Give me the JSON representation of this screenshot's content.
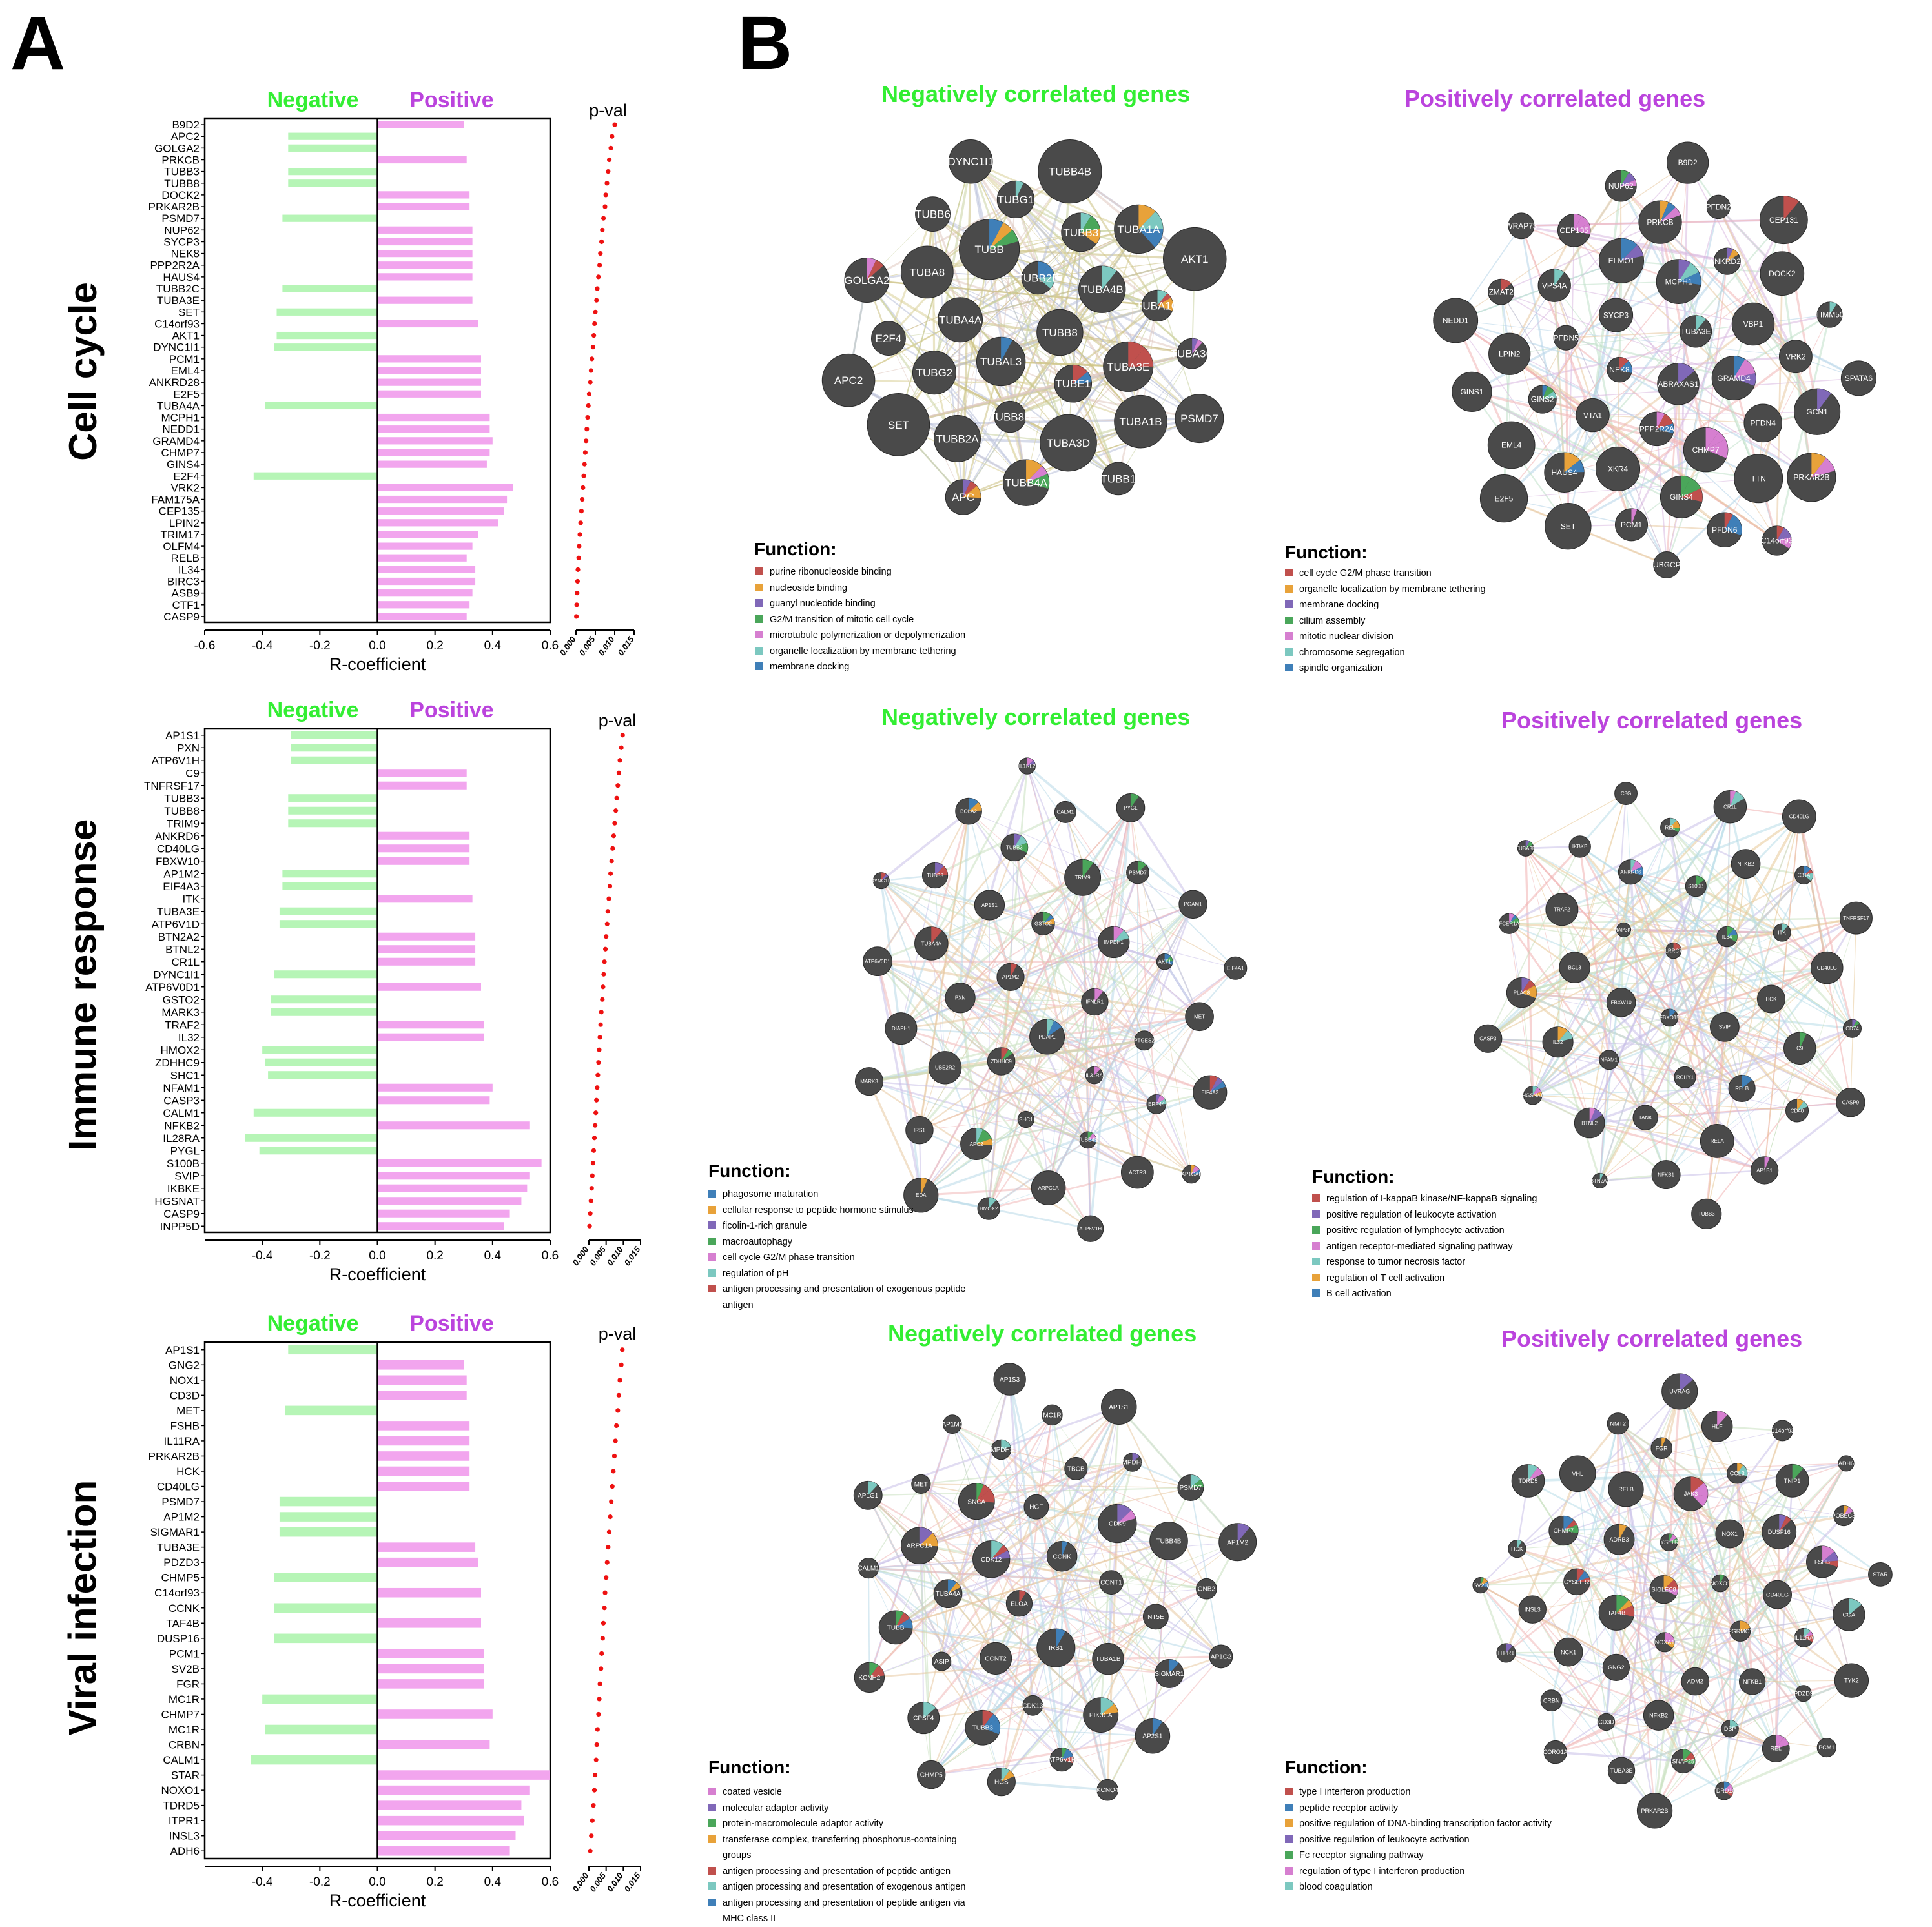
{
  "panels": {
    "a_letter": "A",
    "b_letter": "B"
  },
  "row_labels": [
    "Cell cycle",
    "Immune response",
    "Viral infection"
  ],
  "colors": {
    "negative": "#33ee33",
    "positive": "#bb44dd",
    "neg_bar": "#b6f5b6",
    "pos_bar": "#f2a5ee",
    "dot": "#ee1111",
    "node": "#4a4a4a"
  },
  "chart_data": [
    {
      "type": "bar",
      "orientation": "horizontal",
      "panel": "A",
      "row_label": "Cell cycle",
      "title_negative": "Negative",
      "title_positive": "Positive",
      "xlabel": "R-coefficient",
      "xlim": [
        -0.6,
        0.6
      ],
      "xticks": [
        "-0.6",
        "-0.4",
        "-0.2",
        "0.0",
        "0.2",
        "0.4",
        "0.6"
      ],
      "pval_label": "p-val",
      "pval_xlim": [
        0,
        0.015
      ],
      "pval_ticks": [
        "0.000",
        "0.005",
        "0.010",
        "0.015"
      ],
      "categories": [
        "B9D2",
        "APC2",
        "GOLGA2",
        "PRKCB",
        "TUBB3",
        "TUBB8",
        "DOCK2",
        "PRKAR2B",
        "PSMD7",
        "NUP62",
        "SYCP3",
        "NEK8",
        "PPP2R2A",
        "HAUS4",
        "TUBB2C",
        "TUBA3E",
        "SET",
        "C14orf93",
        "AKT1",
        "DYNC1I1",
        "PCM1",
        "EML4",
        "ANKRD28",
        "E2F5",
        "TUBA4A",
        "MCPH1",
        "NEDD1",
        "GRAMD4",
        "CHMP7",
        "GINS4",
        "E2F4",
        "VRK2",
        "FAM175A",
        "CEP135",
        "LPIN2",
        "TRIM17",
        "OLFM4",
        "RELB",
        "IL34",
        "BIRC3",
        "ASB9",
        "CTF1",
        "CASP9"
      ],
      "values": [
        0.3,
        -0.31,
        -0.31,
        0.31,
        -0.31,
        -0.31,
        0.32,
        0.32,
        -0.33,
        0.33,
        0.33,
        0.33,
        0.33,
        0.33,
        -0.33,
        0.33,
        -0.35,
        0.35,
        -0.35,
        -0.36,
        0.36,
        0.36,
        0.36,
        0.36,
        -0.39,
        0.39,
        0.39,
        0.4,
        0.39,
        0.38,
        -0.43,
        0.47,
        0.45,
        0.44,
        0.42,
        0.35,
        0.33,
        0.31,
        0.34,
        0.34,
        0.33,
        0.32,
        0.31
      ],
      "pvals": [
        0.01,
        0.0093,
        0.009,
        0.0086,
        0.0083,
        0.008,
        0.0077,
        0.0075,
        0.0071,
        0.0068,
        0.0066,
        0.0063,
        0.0061,
        0.0058,
        0.0055,
        0.0053,
        0.005,
        0.0048,
        0.0046,
        0.0044,
        0.0041,
        0.0039,
        0.0037,
        0.0034,
        0.0032,
        0.003,
        0.0028,
        0.0026,
        0.0024,
        0.0022,
        0.002,
        0.0018,
        0.0016,
        0.0014,
        0.0012,
        0.001,
        0.0008,
        0.0007,
        0.0005,
        0.0004,
        0.0003,
        0.0002,
        0.0001
      ]
    },
    {
      "type": "bar",
      "orientation": "horizontal",
      "panel": "A",
      "row_label": "Immune response",
      "title_negative": "Negative",
      "title_positive": "Positive",
      "xlabel": "R-coefficient",
      "xlim": [
        -0.6,
        0.6
      ],
      "xticks": [
        "-0.4",
        "-0.2",
        "0.0",
        "0.2",
        "0.4",
        "0.6"
      ],
      "pval_label": "p-val",
      "pval_xlim": [
        0,
        0.015
      ],
      "pval_ticks": [
        "0.000",
        "0.005",
        "0.010",
        "0.015"
      ],
      "categories": [
        "AP1S1",
        "PXN",
        "ATP6V1H",
        "C9",
        "TNFRSF17",
        "TUBB3",
        "TUBB8",
        "TRIM9",
        "ANKRD6",
        "CD40LG",
        "FBXW10",
        "AP1M2",
        "EIF4A3",
        "ITK",
        "TUBA3E",
        "ATP6V1D",
        "BTN2A2",
        "BTNL2",
        "CR1L",
        "DYNC1I1",
        "ATP6V0D1",
        "GSTO2",
        "MARK3",
        "TRAF2",
        "IL32",
        "HMOX2",
        "ZDHHC9",
        "SHC1",
        "NFAM1",
        "CASP3",
        "CALM1",
        "NFKB2",
        "IL28RA",
        "PYGL",
        "S100B",
        "SVIP",
        "IKBKE",
        "HGSNAT",
        "CASP9",
        "INPP5D"
      ],
      "values": [
        -0.3,
        -0.3,
        -0.3,
        0.31,
        0.31,
        -0.31,
        -0.31,
        -0.31,
        0.32,
        0.32,
        0.32,
        -0.33,
        -0.33,
        0.33,
        -0.34,
        -0.34,
        0.34,
        0.34,
        0.34,
        -0.36,
        0.36,
        -0.37,
        -0.37,
        0.37,
        0.37,
        -0.4,
        -0.39,
        -0.38,
        0.4,
        0.39,
        -0.43,
        0.53,
        -0.46,
        -0.41,
        0.57,
        0.53,
        0.52,
        0.5,
        0.46,
        0.44
      ],
      "pvals": [
        0.0098,
        0.0094,
        0.009,
        0.0087,
        0.0084,
        0.0081,
        0.0078,
        0.0075,
        0.0072,
        0.0069,
        0.0066,
        0.0063,
        0.0061,
        0.0058,
        0.0055,
        0.0053,
        0.005,
        0.0048,
        0.0045,
        0.0043,
        0.0041,
        0.0039,
        0.0036,
        0.0034,
        0.0032,
        0.003,
        0.0028,
        0.0026,
        0.0024,
        0.0022,
        0.002,
        0.0018,
        0.0016,
        0.0014,
        0.0012,
        0.001,
        0.0008,
        0.0006,
        0.0004,
        0.0002
      ]
    },
    {
      "type": "bar",
      "orientation": "horizontal",
      "panel": "A",
      "row_label": "Viral infection",
      "title_negative": "Negative",
      "title_positive": "Positive",
      "xlabel": "R-coefficient",
      "xlim": [
        -0.6,
        0.6
      ],
      "xticks": [
        "-0.4",
        "-0.2",
        "0.0",
        "0.2",
        "0.4",
        "0.6"
      ],
      "pval_label": "p-val",
      "pval_xlim": [
        0,
        0.015
      ],
      "pval_ticks": [
        "0.000",
        "0.005",
        "0.010",
        "0.015"
      ],
      "categories": [
        "AP1S1",
        "GNG2",
        "NOX1",
        "CD3D",
        "MET",
        "FSHB",
        "IL11RA",
        "PRKAR2B",
        "HCK",
        "CD40LG",
        "PSMD7",
        "AP1M2",
        "SIGMAR1",
        "TUBA3E",
        "PDZD3",
        "CHMP5",
        "C14orf93",
        "CCNK",
        "TAF4B",
        "DUSP16",
        "PCM1",
        "SV2B",
        "FGR",
        "MC1R",
        "CHMP7",
        "MC1R",
        "CRBN",
        "CALM1",
        "STAR",
        "NOXO1",
        "TDRD5",
        "ITPR1",
        "INSL3",
        "ADH6"
      ],
      "values": [
        -0.31,
        0.3,
        0.31,
        0.31,
        -0.32,
        0.32,
        0.32,
        0.32,
        0.32,
        0.32,
        -0.34,
        -0.34,
        -0.34,
        0.34,
        0.35,
        -0.36,
        0.36,
        -0.36,
        0.36,
        -0.36,
        0.37,
        0.37,
        0.37,
        -0.4,
        0.4,
        -0.39,
        0.39,
        -0.44,
        0.6,
        0.53,
        0.5,
        0.51,
        0.48,
        0.46
      ],
      "pvals": [
        0.0097,
        0.0094,
        0.009,
        0.0087,
        0.0084,
        0.008,
        0.0077,
        0.0074,
        0.0071,
        0.0068,
        0.0065,
        0.0062,
        0.0059,
        0.0056,
        0.0053,
        0.005,
        0.0047,
        0.0045,
        0.0042,
        0.004,
        0.0037,
        0.0035,
        0.0032,
        0.003,
        0.0028,
        0.0025,
        0.0023,
        0.0021,
        0.0018,
        0.0016,
        0.0013,
        0.001,
        0.0007,
        0.0004
      ]
    }
  ],
  "networks": [
    {
      "title": "Negatively correlated genes",
      "title_color": "#33ee33",
      "function_title": "Function:",
      "functions": [
        {
          "label": "purine ribonucleoside binding",
          "color": "#c0504d"
        },
        {
          "label": "nucleoside binding",
          "color": "#e8a23a"
        },
        {
          "label": "guanyl nucleotide binding",
          "color": "#8068b8"
        },
        {
          "label": "G2/M transition of mitotic cell cycle",
          "color": "#4aa65a"
        },
        {
          "label": "microtubule polymerization or depolymerization",
          "color": "#d67fd0"
        },
        {
          "label": "organelle localization by membrane tethering",
          "color": "#7cc8c0"
        },
        {
          "label": "membrane docking",
          "color": "#3f7fb8"
        }
      ],
      "nodes": [
        "TUBB8",
        "TUBAL3",
        "TUBB2B",
        "TUBE1",
        "TUBA4A",
        "TUBA4B",
        "TUBB8B",
        "TUBB",
        "TUBA3E",
        "TUBG2",
        "TUBB3",
        "TUBA3D",
        "TUBA8",
        "TUBA1C",
        "TUBB2A",
        "TUBG1",
        "TUBA1B",
        "E2F4",
        "TUBA1A",
        "TUBB4A",
        "TUBB6",
        "TUBA3C",
        "SET",
        "TUBB4B",
        "TUBB1",
        "GOLGA2",
        "AKT1",
        "APC",
        "DYNC1I1",
        "PSMD7",
        "APC2"
      ]
    },
    {
      "title": "Positively correlated genes",
      "title_color": "#bb44dd",
      "function_title": "Function:",
      "functions": [
        {
          "label": "cell cycle G2/M phase transition",
          "color": "#c0504d"
        },
        {
          "label": "organelle localization by membrane tethering",
          "color": "#e8a23a"
        },
        {
          "label": "membrane docking",
          "color": "#8068b8"
        },
        {
          "label": "cilium assembly",
          "color": "#4aa65a"
        },
        {
          "label": "mitotic nuclear division",
          "color": "#d67fd0"
        },
        {
          "label": "chromosome segregation",
          "color": "#7cc8c0"
        },
        {
          "label": "spindle organization",
          "color": "#3f7fb8"
        }
      ],
      "nodes": [
        "ABRAXAS1",
        "NEK8",
        "TUBA3E",
        "PPP2R2A",
        "SYCP3",
        "GRAMD4",
        "VTA1",
        "MCPH1",
        "CHMP7",
        "PFDN5",
        "VBP1",
        "XKR4",
        "ELMO1",
        "PFDN4",
        "GINS2",
        "ANKRD28",
        "GINS4",
        "VPS4A",
        "VRK2",
        "HAUS4",
        "PRKCB",
        "TTN",
        "LPIN2",
        "DOCK2",
        "PCM1",
        "CEP135",
        "GCN1",
        "EML4",
        "PFDN2",
        "PFDN6",
        "ZMAT2",
        "TIMM50",
        "SET",
        "NUP62",
        "PRKAR2B",
        "GINS1",
        "CEP131",
        "TUBGCP3",
        "WRAP73",
        "SPATA6",
        "E2F5",
        "B9D2",
        "C14orf93",
        "NEDD1"
      ]
    },
    {
      "title": "Negatively correlated genes",
      "title_color": "#33ee33",
      "function_title": "Function:",
      "functions": [
        {
          "label": "phagosome maturation",
          "color": "#3f7fb8"
        },
        {
          "label": "cellular response to peptide hormone stimulus",
          "color": "#e8a23a"
        },
        {
          "label": "ficolin-1-rich granule",
          "color": "#8068b8"
        },
        {
          "label": "macroautophagy",
          "color": "#4aa65a"
        },
        {
          "label": "cell cycle G2/M phase transition",
          "color": "#d67fd0"
        },
        {
          "label": "regulation of pH",
          "color": "#7cc8c0"
        },
        {
          "label": "antigen processing and presentation of exogenous peptide antigen",
          "color": "#c0504d"
        }
      ],
      "nodes": [
        "PDAP1",
        "AP1M2",
        "IFNLR1",
        "ZDHHC9",
        "GSTO2",
        "IL31RA",
        "PXN",
        "IMPDH1",
        "SHC1",
        "AP1S1",
        "PTGES2",
        "UBE2R2",
        "TRIM9",
        "TUBB4B",
        "TUBA4A",
        "AKT1",
        "APC2",
        "TUBB3",
        "ERP44",
        "DIAPH1",
        "PSMD7",
        "ARPC1A",
        "TUBB8",
        "MET",
        "IRS1",
        "CALM1",
        "ACTR3",
        "ATP6V0D1",
        "PGAM1",
        "HMOX2",
        "BOLA2",
        "EIF4A3",
        "MARK3",
        "PYGL",
        "ATP6V1H",
        "DYNC1I1",
        "EIF4A1",
        "EDA",
        "IL1RL2",
        "RAP1GAP2"
      ]
    },
    {
      "title": "Positively correlated genes",
      "title_color": "#bb44dd",
      "function_title": "Function:",
      "functions": [
        {
          "label": "regulation of I-kappaB kinase/NF-kappaB signaling",
          "color": "#c0504d"
        },
        {
          "label": "positive regulation of leukocyte activation",
          "color": "#8068b8"
        },
        {
          "label": "positive regulation of lymphocyte activation",
          "color": "#4aa65a"
        },
        {
          "label": "antigen receptor-mediated signaling pathway",
          "color": "#d67fd0"
        },
        {
          "label": "response to tumor necrosis factor",
          "color": "#7cc8c0"
        },
        {
          "label": "regulation of T cell activation",
          "color": "#e8a23a"
        },
        {
          "label": "B cell activation",
          "color": "#3f7fb8"
        }
      ],
      "nodes": [
        "FBXO15",
        "LRRC7",
        "SVIP",
        "FBXW10",
        "IL34",
        "RCHY1",
        "MAP3K8",
        "HCK",
        "NFAM1",
        "S100B",
        "RELB",
        "BCL3",
        "ITK",
        "TANK",
        "ANKRD6",
        "C9",
        "IL32",
        "NFKB2",
        "RELA",
        "TRAF2",
        "CD40LG",
        "BTNL2",
        "REL",
        "CD40",
        "PLAC8",
        "C3TA",
        "NFKB1",
        "IKBKB",
        "CD74",
        "HGSNAT",
        "CR1L",
        "AP1B1",
        "FCER1A",
        "TNFRSF17",
        "BTN2A2",
        "C8G",
        "CASP9",
        "CASP3",
        "CD40LG",
        "TUBB3",
        "TUBA3E"
      ]
    },
    {
      "title": "Negatively correlated genes",
      "title_color": "#33ee33",
      "function_title": "Function:",
      "functions": [
        {
          "label": "coated vesicle",
          "color": "#d67fd0"
        },
        {
          "label": "molecular adaptor activity",
          "color": "#8068b8"
        },
        {
          "label": "protein-macromolecule adaptor activity",
          "color": "#4aa65a"
        },
        {
          "label": "transferase complex, transferring phosphorus-containing groups",
          "color": "#e8a23a"
        },
        {
          "label": "antigen processing and presentation of peptide antigen",
          "color": "#c0504d"
        },
        {
          "label": "antigen processing and presentation of exogenous antigen",
          "color": "#7cc8c0"
        },
        {
          "label": "antigen processing and presentation of peptide antigen via MHC class II",
          "color": "#3f7fb8"
        }
      ],
      "nodes": [
        "ELOA",
        "CCNK",
        "IRS1",
        "CDK12",
        "CCNT1",
        "CCNT2",
        "HGF",
        "TUBA1B",
        "TUBA4A",
        "CDK9",
        "CDK13",
        "SNCA",
        "NT5E",
        "ASIP",
        "TBCB",
        "PIK3CA",
        "ARPC1A",
        "TUBB4B",
        "TUBB3",
        "IMPDH1",
        "SIGMAR1",
        "TUBB",
        "IMPDH2",
        "ATP6V1H",
        "MET",
        "GNB2",
        "CPSF4",
        "MC1R",
        "AP2S1",
        "CALM1",
        "PSMD7",
        "HGS",
        "AP1M1",
        "AP1G2",
        "KCNH2",
        "AP1S1",
        "KCNQ4",
        "AP1G1",
        "AP1M2",
        "CHMP5",
        "AP1S3"
      ]
    },
    {
      "title": "Positively correlated genes",
      "title_color": "#bb44dd",
      "function_title": "Function:",
      "functions": [
        {
          "label": "type I interferon production",
          "color": "#c0504d"
        },
        {
          "label": "peptide receptor activity",
          "color": "#3f7fb8"
        },
        {
          "label": "positive regulation of DNA-binding transcription factor activity",
          "color": "#e8a23a"
        },
        {
          "label": "positive regulation of leukocyte activation",
          "color": "#8068b8"
        },
        {
          "label": "Fc receptor signaling pathway",
          "color": "#4aa65a"
        },
        {
          "label": "regulation of type I interferon production",
          "color": "#d67fd0"
        },
        {
          "label": "blood coagulation",
          "color": "#7cc8c0"
        }
      ],
      "nodes": [
        "SIGLEC8",
        "NOXO1",
        "NOXA1",
        "CYSLTR1",
        "PGRMC1",
        "TAF4B",
        "NOX1",
        "ADM2",
        "ADRB3",
        "CD40LG",
        "GNG2",
        "JAK3",
        "NFKB1",
        "CYSLTR2",
        "DUSP16",
        "NFKB2",
        "RELB",
        "IL11RA",
        "NCK1",
        "CCL3",
        "DBP",
        "CHMP7",
        "FSHB",
        "CD3D",
        "FGR",
        "PDZD3",
        "INSL3",
        "TNIP1",
        "SNAP25",
        "VHL",
        "CGA",
        "CRBN",
        "HLF",
        "REL",
        "HCK",
        "APOBEC3G",
        "TUBA3E",
        "NMT2",
        "TYK2",
        "ITPR1",
        "C14orf93",
        "TDRD10",
        "TDRD5",
        "STAR",
        "CORO1A",
        "UVRAG",
        "PCM1",
        "SV2B",
        "ADH6",
        "PRKAR2B"
      ]
    }
  ]
}
